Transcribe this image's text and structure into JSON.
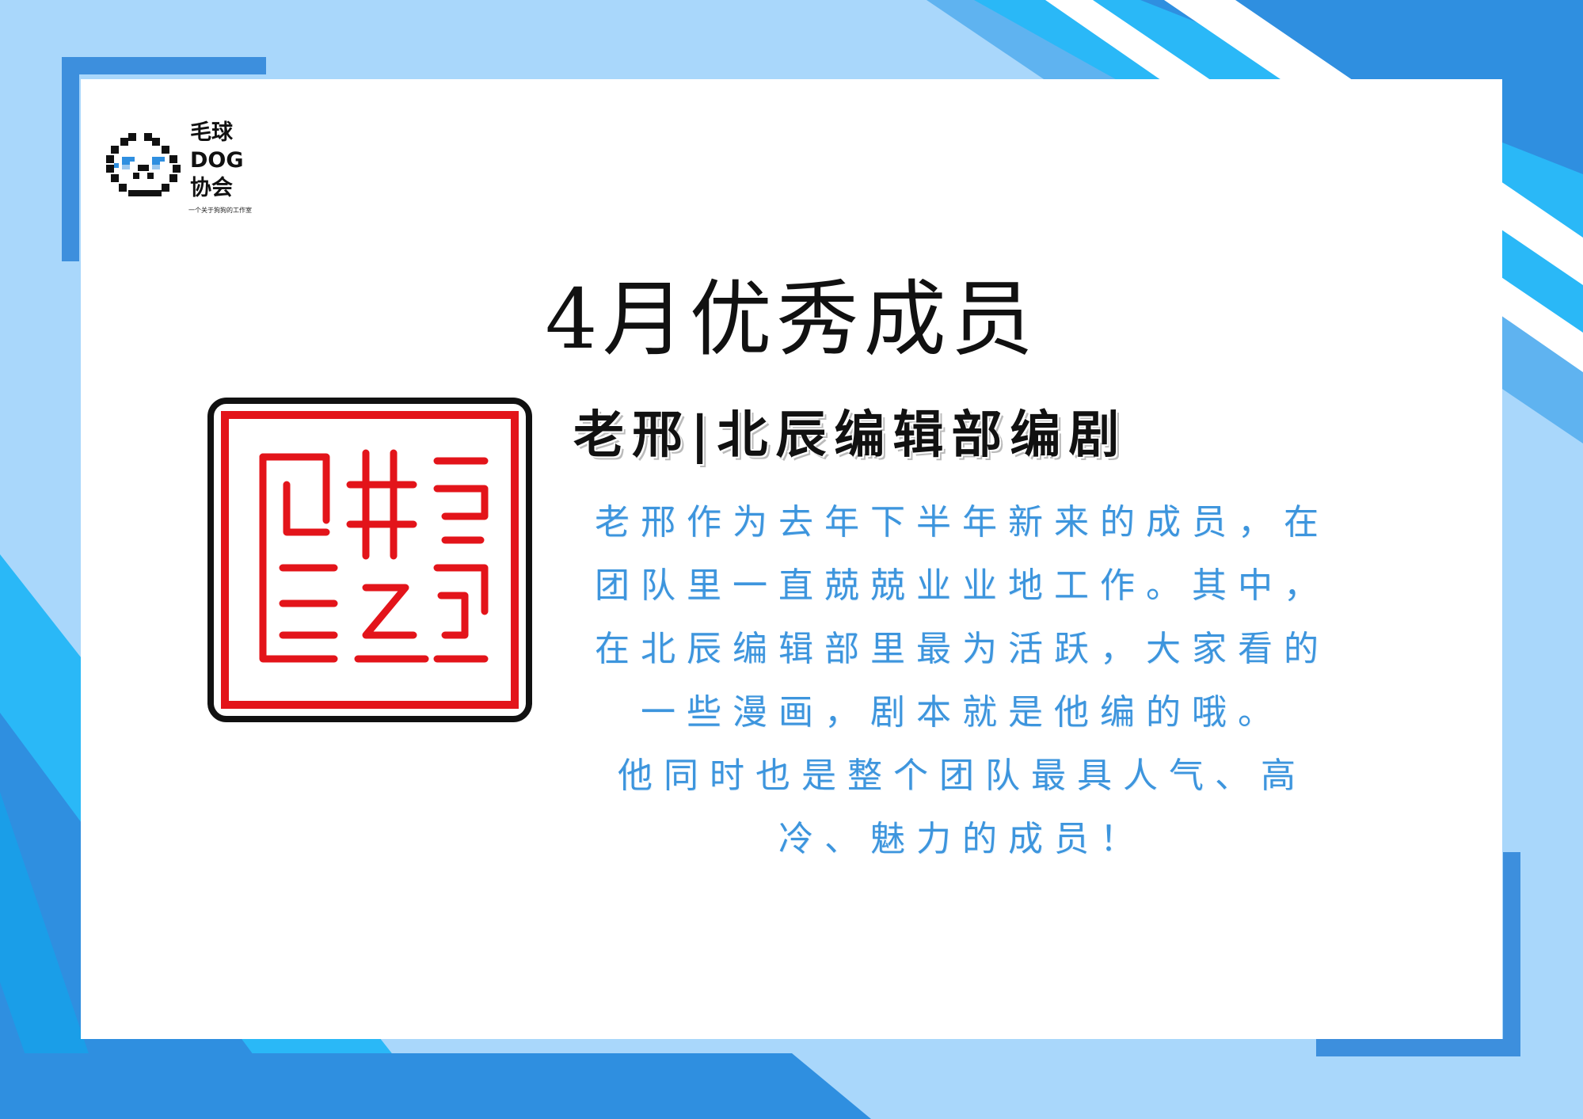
{
  "colors": {
    "background": "#a9d7fb",
    "accent_blue": "#2f8fe0",
    "bright_blue": "#2ab8f7",
    "card": "#ffffff",
    "seal_red": "#e3141a",
    "body_text": "#3d95dd"
  },
  "logo": {
    "name_line1": "毛球",
    "name_line2": "DOG",
    "name_line3": "协会",
    "tagline": "一个关于狗狗的工作室",
    "icon": "pixel-dog-icon"
  },
  "title": "4月优秀成员",
  "seal": {
    "icon": "red-seal-stamp-icon"
  },
  "member": {
    "name_role": "老邢|北辰编辑部编剧"
  },
  "description": {
    "paragraph1": "老邢作为去年下半年新来的成员，在团队里一直兢兢业业地工作。其中，在北辰编辑部里最为活跃，大家看的一些漫画，剧本就是他编的哦。",
    "paragraph2": "他同时也是整个团队最具人气、高冷、魅力的成员！"
  }
}
